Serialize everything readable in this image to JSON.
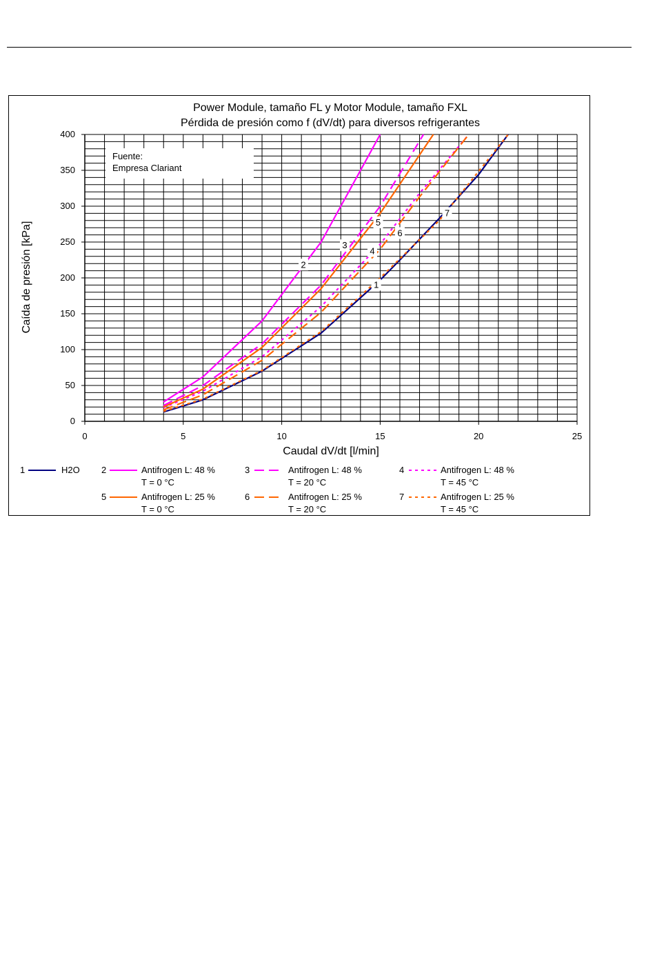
{
  "chart_data": {
    "type": "line",
    "title": "Power Module, tamaño FL y Motor Module, tamaño FXL",
    "subtitle": "Pérdida de presión como f (dV/dt) para diversos refrigerantes",
    "xlabel": "Caudal dV/dt [l/min]",
    "ylabel": "Caída de presión [kPa]",
    "xlim": [
      0,
      25
    ],
    "ylim": [
      0,
      400
    ],
    "x_ticks": [
      "0",
      "5",
      "10",
      "15",
      "20",
      "25"
    ],
    "y_ticks": [
      "0",
      "50",
      "100",
      "150",
      "200",
      "250",
      "300",
      "350",
      "400"
    ],
    "grid": true,
    "annotation": {
      "line1": "Fuente:",
      "line2": "Empresa Clariant"
    },
    "legend_placement": "bottom",
    "series": [
      {
        "id": "1",
        "name": "H2O",
        "color": "#000080",
        "dash": "solid",
        "x": [
          4,
          6,
          9,
          12,
          15,
          16,
          18,
          20,
          21.5
        ],
        "y": [
          13,
          30,
          70,
          123,
          197,
          225,
          283,
          344,
          400
        ]
      },
      {
        "id": "2",
        "name": "Antifrogen L: 48 %",
        "name2": "T = 0 °C",
        "color": "#ff00ff",
        "dash": "solid",
        "x": [
          4,
          6,
          9,
          12,
          13.5,
          15
        ],
        "y": [
          27,
          62,
          140,
          250,
          325,
          400
        ]
      },
      {
        "id": "3",
        "name": "Antifrogen L: 48 %",
        "name2": "T = 20 °C",
        "color": "#ff00ff",
        "dash": "longdash",
        "x": [
          4,
          6,
          9,
          12,
          15,
          17.2
        ],
        "y": [
          22,
          50,
          108,
          190,
          300,
          400
        ]
      },
      {
        "id": "4",
        "name": "Antifrogen L: 48 %",
        "name2": "T = 45 °C",
        "color": "#ff00ff",
        "dash": "dotted",
        "x": [
          4,
          6,
          9,
          12,
          15,
          17,
          19.5
        ],
        "y": [
          19,
          42,
          90,
          160,
          247,
          318,
          400
        ]
      },
      {
        "id": "5",
        "name": "Antifrogen L: 25 %",
        "name2": "T = 0 °C",
        "color": "#ff6600",
        "dash": "solid",
        "x": [
          4,
          6,
          9,
          12,
          15,
          17.7
        ],
        "y": [
          20,
          45,
          103,
          185,
          290,
          400
        ]
      },
      {
        "id": "6",
        "name": "Antifrogen L: 25 %",
        "name2": "T = 20 °C",
        "color": "#ff6600",
        "dash": "longdash",
        "x": [
          4,
          6,
          9,
          12,
          15,
          17,
          19.5
        ],
        "y": [
          16,
          37,
          85,
          152,
          240,
          313,
          400
        ]
      },
      {
        "id": "7",
        "name": "Antifrogen L: 25 %",
        "name2": "T = 45 °C",
        "color": "#ff6600",
        "dash": "dotted",
        "x": [
          4,
          6,
          9,
          12,
          15,
          18,
          21.5
        ],
        "y": [
          14,
          31,
          71,
          125,
          200,
          280,
          400
        ]
      }
    ],
    "curve_labels": [
      {
        "text": "1",
        "x": 14.8,
        "y": 190
      },
      {
        "text": "2",
        "x": 11.1,
        "y": 218
      },
      {
        "text": "3",
        "x": 13.2,
        "y": 245
      },
      {
        "text": "4",
        "x": 14.6,
        "y": 237
      },
      {
        "text": "5",
        "x": 14.9,
        "y": 277
      },
      {
        "text": "6",
        "x": 16.0,
        "y": 262
      },
      {
        "text": "7",
        "x": 18.4,
        "y": 290
      }
    ]
  }
}
